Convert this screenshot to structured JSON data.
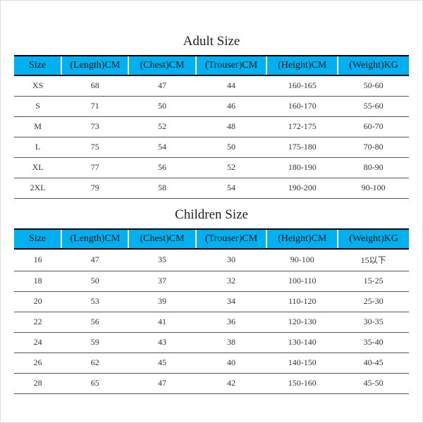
{
  "header_bg": "#00b0f0",
  "adult_title": "Adult Size",
  "children_title": "Children Size",
  "columns": [
    "Size",
    "(Length)CM",
    "(Chest)CM",
    "(Trouser)CM",
    "(Height)CM",
    "(Weight)KG"
  ],
  "adult_rows": [
    [
      "XS",
      "68",
      "47",
      "44",
      "160-165",
      "50-60"
    ],
    [
      "S",
      "71",
      "50",
      "46",
      "160-170",
      "55-60"
    ],
    [
      "M",
      "73",
      "52",
      "48",
      "172-175",
      "60-70"
    ],
    [
      "L",
      "75",
      "54",
      "50",
      "175-180",
      "70-80"
    ],
    [
      "XL",
      "77",
      "56",
      "52",
      "180-190",
      "80-90"
    ],
    [
      "2XL",
      "79",
      "58",
      "54",
      "190-200",
      "90-100"
    ]
  ],
  "children_rows": [
    [
      "16",
      "47",
      "35",
      "30",
      "90-100",
      "15以下"
    ],
    [
      "18",
      "50",
      "37",
      "32",
      "100-110",
      "15-25"
    ],
    [
      "20",
      "53",
      "39",
      "34",
      "110-120",
      "25-30"
    ],
    [
      "22",
      "56",
      "41",
      "36",
      "120-130",
      "30-35"
    ],
    [
      "24",
      "59",
      "43",
      "38",
      "130-140",
      "35-40"
    ],
    [
      "26",
      "62",
      "45",
      "40",
      "140-150",
      "40-45"
    ],
    [
      "28",
      "65",
      "47",
      "42",
      "150-160",
      "45-50"
    ]
  ]
}
